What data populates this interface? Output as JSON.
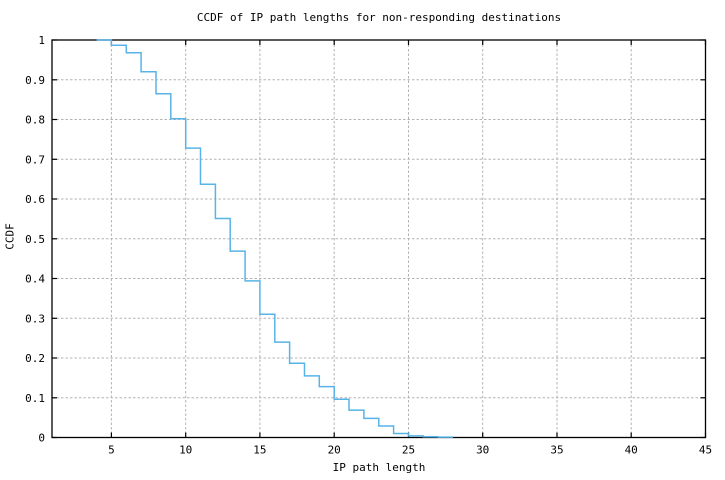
{
  "figure": {
    "background": "#ffffff"
  },
  "chart_data": {
    "type": "line",
    "subtype": "ccdf-staircase-step-plot",
    "title": "CCDF of IP path lengths for non-responding destinations",
    "xlabel": "IP path length",
    "ylabel": "CCDF",
    "xlim": [
      1,
      45
    ],
    "ylim": [
      0,
      1
    ],
    "x_ticks": [
      5,
      10,
      15,
      20,
      25,
      30,
      35,
      40,
      45
    ],
    "x_tick_labels": [
      "5",
      "10",
      "15",
      "20",
      "25",
      "30",
      "35",
      "40",
      "45"
    ],
    "y_ticks": [
      0,
      0.1,
      0.2,
      0.3,
      0.4,
      0.5,
      0.6,
      0.7,
      0.8,
      0.9,
      1
    ],
    "y_tick_labels": [
      "0",
      "0.1",
      "0.2",
      "0.3",
      "0.4",
      "0.5",
      "0.6",
      "0.7",
      "0.8",
      "0.9",
      "1"
    ],
    "grid": "dashed gridlines at every major tick, full box border with mirrored inward ticks",
    "legend": "none",
    "colors": {
      "line": "#58b4e8",
      "grid": "#b3b3b3",
      "border": "#000000",
      "text": "#000000",
      "background": "#ffffff"
    },
    "series": [
      {
        "name": "CCDF of IP path lengths",
        "style": "step",
        "comment": "y[i] is CCDF value on interval [x[i], x[i]+1); staircase ends at x_end",
        "x": [
          4,
          5,
          6,
          7,
          8,
          9,
          10,
          11,
          12,
          13,
          14,
          15,
          16,
          17,
          18,
          19,
          20,
          21,
          22,
          23,
          24,
          25,
          26,
          27
        ],
        "y": [
          1.0,
          0.987,
          0.968,
          0.92,
          0.865,
          0.802,
          0.728,
          0.637,
          0.551,
          0.469,
          0.394,
          0.31,
          0.24,
          0.187,
          0.155,
          0.128,
          0.096,
          0.069,
          0.048,
          0.029,
          0.01,
          0.004,
          0.002,
          0.001
        ],
        "x_end": 28
      }
    ]
  }
}
